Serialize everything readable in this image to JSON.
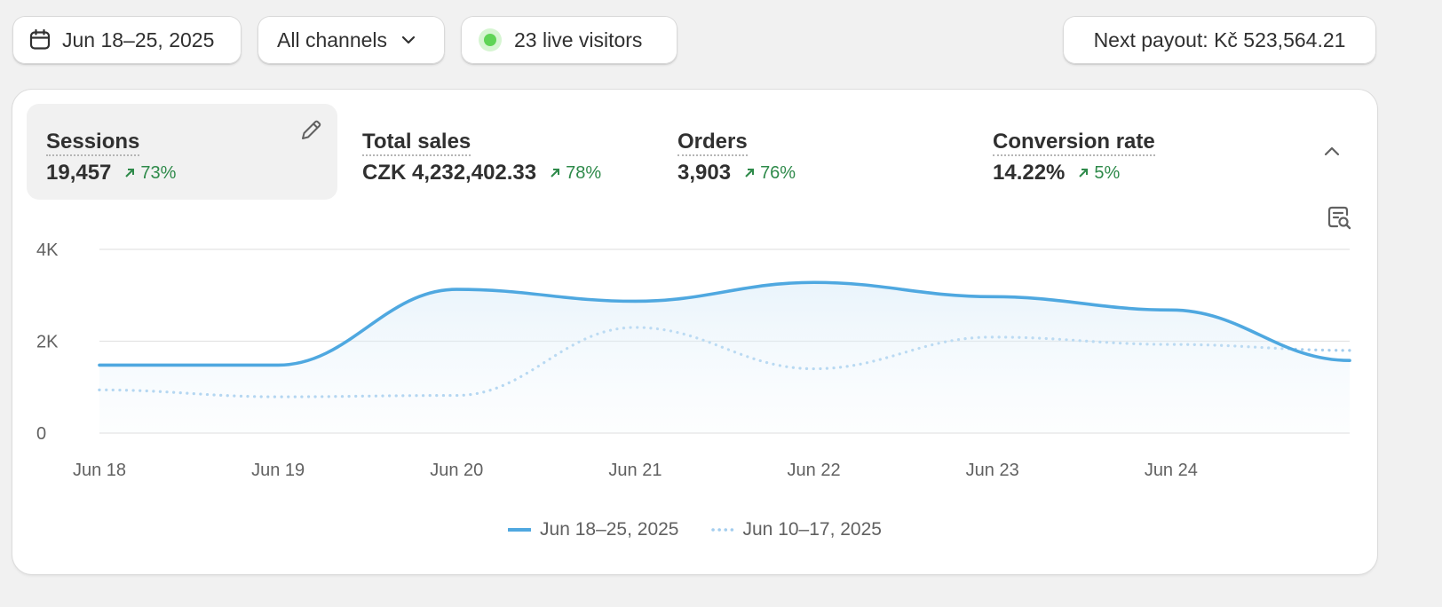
{
  "filters": {
    "date_range": "Jun 18–25, 2025",
    "channel": "All channels",
    "live_visitors": "23 live visitors",
    "payout": "Next payout: Kč 523,564.21"
  },
  "metrics": [
    {
      "label": "Sessions",
      "value": "19,457",
      "change": "73%",
      "active": true
    },
    {
      "label": "Total sales",
      "value": "CZK 4,232,402.33",
      "change": "78%"
    },
    {
      "label": "Orders",
      "value": "3,903",
      "change": "76%"
    },
    {
      "label": "Conversion rate",
      "value": "14.22%",
      "change": "5%"
    }
  ],
  "colors": {
    "current_series": "#4fa8e0",
    "previous_series": "#a3cdee",
    "positive_change": "#2e8a4a",
    "live_dot": "#5fd456"
  },
  "icons": [
    "calendar-icon",
    "chevron-down-icon",
    "live-dot-icon",
    "pencil-icon",
    "arrow-up-right-icon",
    "chevron-up-icon",
    "report-search-icon"
  ],
  "chart_data": {
    "type": "line",
    "metric": "Sessions",
    "x_ticks": [
      "Jun 18",
      "Jun 19",
      "Jun 20",
      "Jun 21",
      "Jun 22",
      "Jun 23",
      "Jun 24"
    ],
    "y_ticks": [
      0,
      2000,
      4000
    ],
    "y_tick_labels": [
      "0",
      "2K",
      "4K"
    ],
    "ylim": [
      0,
      4000
    ],
    "grid": true,
    "legend_position": "bottom-center",
    "series": [
      {
        "name": "Jun 18–25, 2025",
        "style": "solid",
        "area": true,
        "x": [
          0,
          1,
          2,
          3,
          4,
          5,
          6,
          7
        ],
        "y": [
          1480,
          1480,
          3130,
          2870,
          3280,
          2970,
          2680,
          1580
        ]
      },
      {
        "name": "Jun 10–17, 2025",
        "style": "dotted",
        "x": [
          0,
          1,
          2,
          3,
          4,
          5,
          6,
          7
        ],
        "y": [
          940,
          790,
          820,
          2300,
          1400,
          2090,
          1930,
          1800
        ]
      }
    ]
  }
}
